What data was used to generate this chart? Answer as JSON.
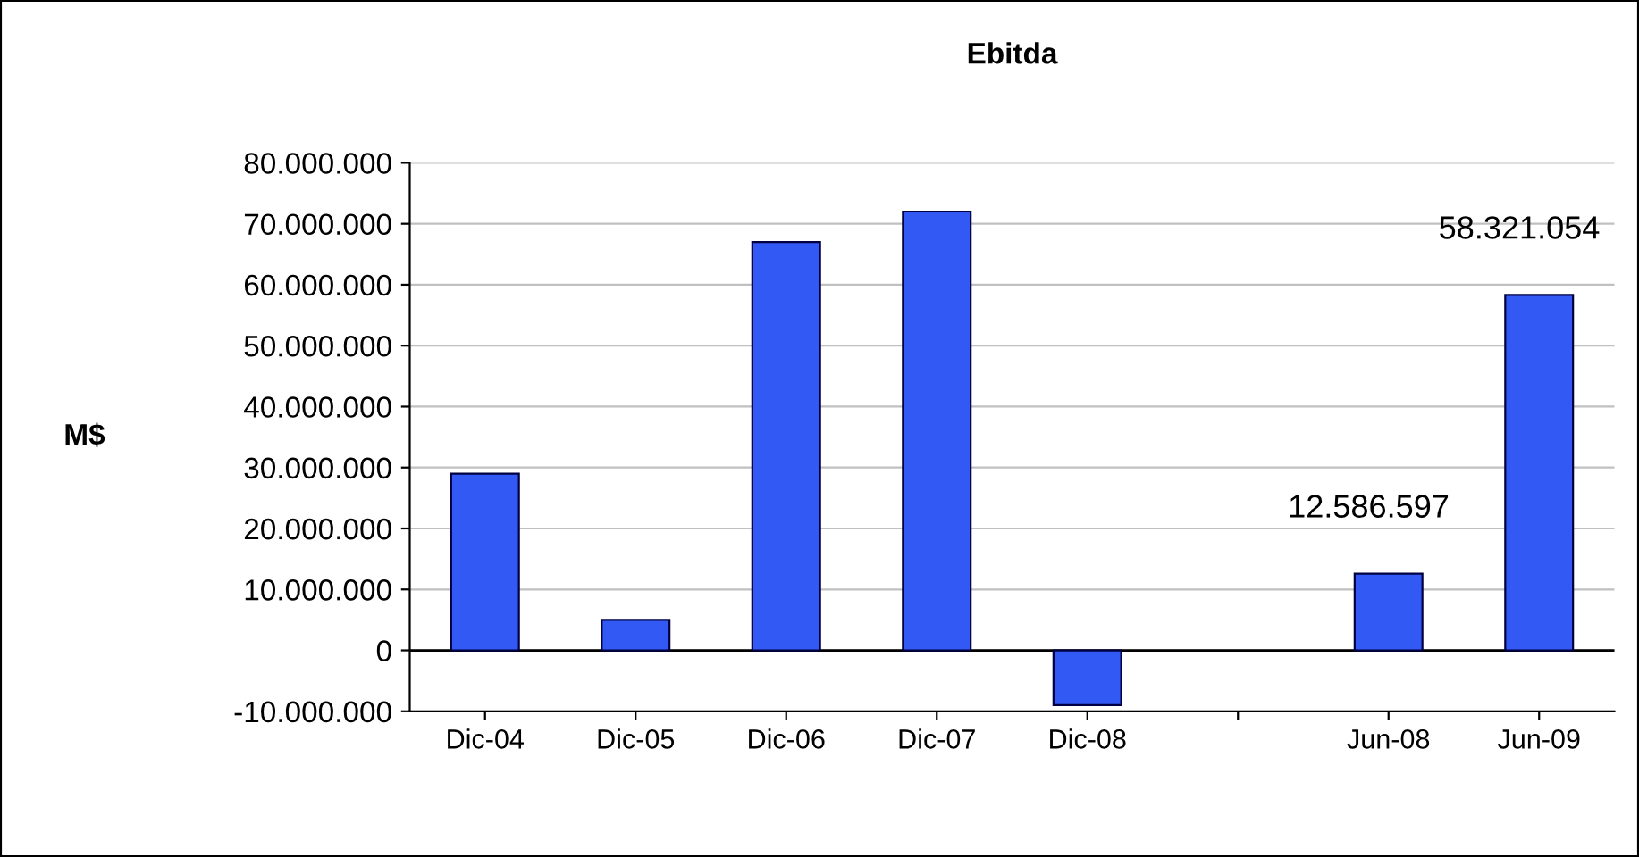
{
  "chart_data": {
    "type": "bar",
    "title": "Ebitda",
    "ylabel": "M$",
    "categories": [
      "Dic-04",
      "Dic-05",
      "Dic-06",
      "Dic-07",
      "Dic-08",
      null,
      "Jun-08",
      "Jun-09"
    ],
    "values": [
      29000000,
      5000000,
      67000000,
      72000000,
      -9000000,
      null,
      12586597,
      58321054
    ],
    "value_labels": [
      null,
      null,
      null,
      null,
      null,
      null,
      "12.586.597",
      "58.321.054"
    ],
    "color": "#3359f5",
    "ylim": [
      -10000000,
      80000000
    ],
    "yticks": [
      {
        "value": -10000000,
        "label": "-10.000.000"
      },
      {
        "value": 0,
        "label": "0"
      },
      {
        "value": 10000000,
        "label": "10.000.000"
      },
      {
        "value": 20000000,
        "label": "20.000.000"
      },
      {
        "value": 30000000,
        "label": "30.000.000"
      },
      {
        "value": 40000000,
        "label": "40.000.000"
      },
      {
        "value": 50000000,
        "label": "50.000.000"
      },
      {
        "value": 60000000,
        "label": "60.000.000"
      },
      {
        "value": 70000000,
        "label": "70.000.000"
      },
      {
        "value": 80000000,
        "label": "80.000.000"
      }
    ],
    "grid": "y",
    "legend": false
  }
}
